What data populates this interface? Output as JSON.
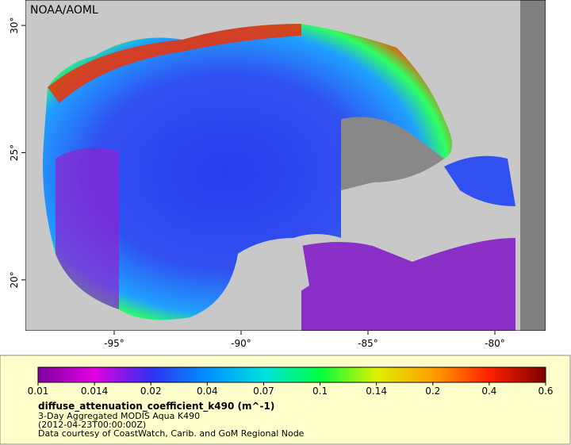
{
  "map": {
    "label": "NOAA/AOML",
    "xlim": [
      -98.5,
      -78
    ],
    "ylim": [
      18,
      31
    ],
    "xticks": [
      {
        "value": -95,
        "label": "-95°"
      },
      {
        "value": -90,
        "label": "-90°"
      },
      {
        "value": -85,
        "label": "-85°"
      },
      {
        "value": -80,
        "label": "-80°"
      }
    ],
    "yticks": [
      {
        "value": 20,
        "label": "20°"
      },
      {
        "value": 25,
        "label": "25°"
      },
      {
        "value": 30,
        "label": "30°"
      }
    ]
  },
  "colorbar": {
    "ticks": [
      0.01,
      0.014,
      0.02,
      0.04,
      0.07,
      0.1,
      0.14,
      0.2,
      0.4,
      0.6
    ],
    "colors": [
      "#8000a0",
      "#e000e0",
      "#3030f0",
      "#0090ff",
      "#00e0e0",
      "#00ff40",
      "#e0f000",
      "#ffa000",
      "#ff2000",
      "#800000"
    ]
  },
  "caption": {
    "variable": "diffuse_attenuation_coefficient_k490 (m^-1)",
    "dataset": "3-Day Aggregated MODIS Aqua K490",
    "time": "(2012-04-23T00:00:00Z)",
    "credit": "Data courtesy of CoastWatch, Carib. and GoM Regional Node"
  }
}
